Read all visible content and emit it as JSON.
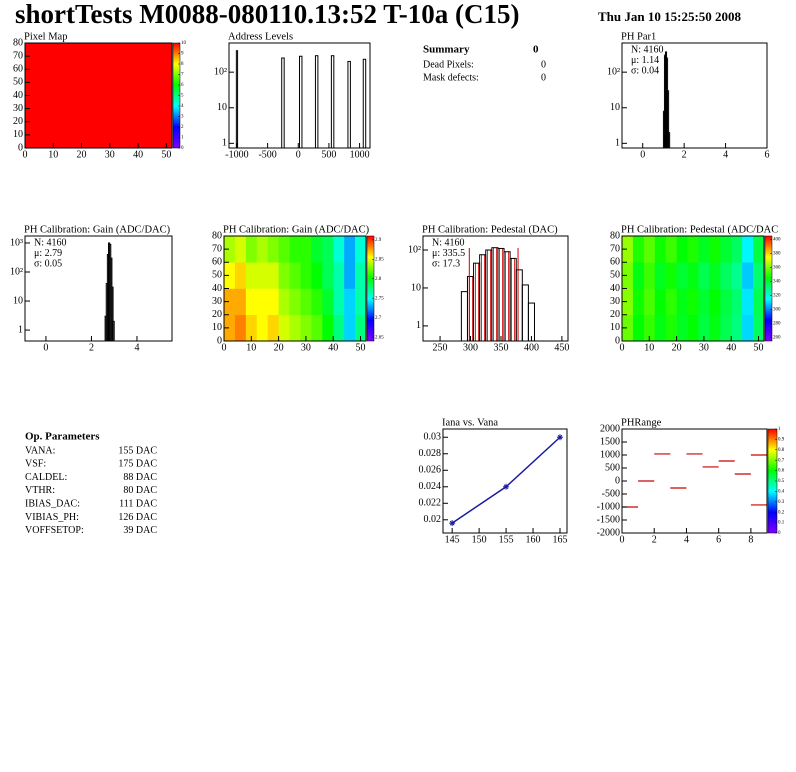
{
  "header": {
    "title": "shortTests M0088-080110.13:52 T-10a (C15)",
    "date": "Thu Jan 10 15:25:50 2008"
  },
  "summary": {
    "title": "Summary",
    "value": "0",
    "rows": [
      [
        "Dead Pixels:",
        "0"
      ],
      [
        "Mask defects:",
        "0"
      ]
    ]
  },
  "op_parameters": {
    "title": "Op. Parameters",
    "rows": [
      [
        "VANA:",
        "155 DAC"
      ],
      [
        "VSF:",
        "175 DAC"
      ],
      [
        "CALDEL:",
        "88 DAC"
      ],
      [
        "VTHR:",
        "80 DAC"
      ],
      [
        "IBIAS_DAC:",
        "111 DAC"
      ],
      [
        "VIBIAS_PH:",
        "126 DAC"
      ],
      [
        "VOFFSETOP:",
        "39 DAC"
      ]
    ]
  },
  "chart_data": [
    {
      "type": "heatmap",
      "title": "Pixel Map",
      "fill_value": 10,
      "color": "#ff0000",
      "xlim": [
        0,
        52
      ],
      "xticks": [
        0,
        10,
        20,
        30,
        40,
        50
      ],
      "ylim": [
        0,
        80
      ],
      "yticks": [
        0,
        10,
        20,
        30,
        40,
        50,
        60,
        70,
        80
      ],
      "zlim": [
        0,
        10
      ],
      "zticks": [
        0,
        1,
        2,
        3,
        4,
        5,
        6,
        7,
        8,
        9,
        10
      ]
    },
    {
      "type": "histogram",
      "title": "Address Levels",
      "log_y": true,
      "color": "#000000",
      "bins": [
        -1010,
        -990,
        -270,
        -230,
        20,
        60,
        280,
        320,
        540,
        580,
        810,
        850,
        1060,
        1100
      ],
      "values": [
        400,
        0,
        250,
        0,
        280,
        0,
        290,
        0,
        290,
        0,
        200,
        0,
        230
      ],
      "xlim": [
        -1130,
        1170
      ],
      "xticks": [
        -1000,
        -500,
        0,
        500,
        1000
      ],
      "ylim": [
        0.74,
        660
      ],
      "yticks": [
        1,
        10,
        {
          "value": 100,
          "label": "10²"
        }
      ]
    },
    {
      "type": "histogram",
      "title": "PH Par1",
      "log_y": true,
      "color": "#000000",
      "stats": [
        "N: 4160",
        "μ: 1.14",
        "σ: 0.04"
      ],
      "bins": [
        1.0,
        1.05,
        1.1,
        1.15,
        1.2,
        1.25,
        1.3
      ],
      "values": [
        8,
        300,
        370,
        250,
        30,
        2
      ],
      "xlim": [
        -1,
        6
      ],
      "xticks": [
        0,
        2,
        4,
        6
      ],
      "ylim": [
        0.74,
        660
      ],
      "yticks": [
        1,
        10,
        {
          "value": 100,
          "label": "10²"
        }
      ]
    },
    {
      "type": "histogram",
      "title": "PH Calibration: Gain (ADC/DAC)",
      "log_y": true,
      "color": "#000000",
      "stats": [
        "N: 4160",
        "μ: 2.79",
        "σ: 0.05"
      ],
      "bins": [
        2.6,
        2.65,
        2.7,
        2.75,
        2.8,
        2.85,
        2.9,
        2.95,
        3.0
      ],
      "values": [
        3,
        40,
        400,
        1000,
        900,
        300,
        30,
        2
      ],
      "xlim": [
        -0.92,
        5.54
      ],
      "xticks": [
        0,
        2,
        4
      ],
      "ylim": [
        0.42,
        1740
      ],
      "yticks": [
        1,
        10,
        {
          "value": 100,
          "label": "10²"
        },
        {
          "value": 1000,
          "label": "10³"
        }
      ]
    },
    {
      "type": "heatmap",
      "title": "PH Calibration: Gain (ADC/DAC)",
      "values": [
        [
          2.87,
          2.88,
          2.86,
          2.85,
          2.86,
          2.84,
          2.83,
          2.82,
          2.81,
          2.79,
          2.76,
          2.72,
          2.76
        ],
        [
          2.87,
          2.87,
          2.85,
          2.85,
          2.85,
          2.83,
          2.82,
          2.81,
          2.8,
          2.78,
          2.75,
          2.72,
          2.75
        ],
        [
          2.85,
          2.86,
          2.84,
          2.84,
          2.84,
          2.82,
          2.81,
          2.8,
          2.79,
          2.77,
          2.75,
          2.71,
          2.75
        ],
        [
          2.83,
          2.84,
          2.82,
          2.83,
          2.82,
          2.81,
          2.8,
          2.8,
          2.78,
          2.77,
          2.74,
          2.71,
          2.74
        ]
      ],
      "xlim": [
        0,
        52
      ],
      "xticks": [
        0,
        10,
        20,
        30,
        40,
        50
      ],
      "ylim": [
        0,
        80
      ],
      "yticks": [
        0,
        10,
        20,
        30,
        40,
        50,
        60,
        70,
        80
      ],
      "zlim": [
        2.64,
        2.91
      ],
      "zticks": [
        2.65,
        2.7,
        2.75,
        2.8,
        2.85,
        2.9
      ]
    },
    {
      "type": "histogram",
      "title": "PH Calibration: Pedestal (DAC)",
      "log_y": true,
      "color": "#000000",
      "fit_color": "#d00000",
      "fit_range": [
        298,
        378
      ],
      "stats": [
        "N: 4160",
        "μ: 335.5",
        "σ: 17.3"
      ],
      "stats_colors": [
        "#000000",
        "#d00000",
        "#d00000"
      ],
      "bins": [
        285,
        295,
        305,
        315,
        325,
        335,
        345,
        355,
        365,
        375,
        385,
        395,
        405
      ],
      "values": [
        8,
        20,
        45,
        75,
        100,
        115,
        110,
        90,
        60,
        30,
        12,
        4
      ],
      "xlim": [
        222,
        460
      ],
      "xticks": [
        250,
        300,
        350,
        400,
        450
      ],
      "ylim": [
        0.4,
        234
      ],
      "yticks": [
        1,
        10,
        {
          "value": 100,
          "label": "10²"
        }
      ]
    },
    {
      "type": "heatmap",
      "title": "PH Calibration: Pedestal (ADC/DAC",
      "values": [
        [
          352,
          338,
          345,
          336,
          342,
          334,
          338,
          330,
          336,
          328,
          322,
          300,
          326
        ],
        [
          356,
          340,
          348,
          338,
          344,
          336,
          340,
          332,
          338,
          330,
          324,
          302,
          328
        ],
        [
          354,
          336,
          346,
          334,
          340,
          332,
          336,
          328,
          334,
          326,
          320,
          298,
          324
        ],
        [
          358,
          342,
          350,
          340,
          346,
          338,
          342,
          334,
          340,
          332,
          326,
          304,
          330
        ]
      ],
      "xlim": [
        0,
        52
      ],
      "xticks": [
        0,
        10,
        20,
        30,
        40,
        50
      ],
      "ylim": [
        0,
        80
      ],
      "yticks": [
        0,
        10,
        20,
        30,
        40,
        50,
        60,
        70,
        80
      ],
      "zlim": [
        255,
        405
      ],
      "zticks": [
        260,
        280,
        300,
        320,
        340,
        360,
        380,
        400
      ]
    },
    {
      "type": "line",
      "title": "Iana vs. Vana",
      "color": "#1a1aa0",
      "x": [
        145,
        155,
        165
      ],
      "values": [
        0.0196,
        0.024,
        0.03
      ],
      "xlim": [
        143.3,
        166.3
      ],
      "xticks": [
        145,
        150,
        155,
        160,
        165
      ],
      "ylim": [
        0.0184,
        0.031
      ],
      "yticks": [
        0.02,
        0.022,
        0.024,
        0.026,
        0.028,
        0.03
      ]
    },
    {
      "type": "dash",
      "title": "PHRange",
      "color": "#cc0000",
      "x": [
        0,
        1,
        2,
        3,
        4,
        5,
        6,
        7,
        8,
        8
      ],
      "values": [
        -1000,
        0,
        1040,
        -270,
        1040,
        540,
        770,
        270,
        1000,
        -920
      ],
      "xlim": [
        0,
        9
      ],
      "xticks": [
        0,
        2,
        4,
        6,
        8
      ],
      "ylim": [
        -2000,
        2000
      ],
      "yticks": [
        -2000,
        -1500,
        -1000,
        -500,
        0,
        500,
        1000,
        1500,
        2000
      ],
      "zlim": [
        0,
        1
      ],
      "zticks": [
        0,
        0.1,
        0.2,
        0.3,
        0.4,
        0.5,
        0.6,
        0.7,
        0.8,
        0.9,
        1
      ]
    }
  ]
}
